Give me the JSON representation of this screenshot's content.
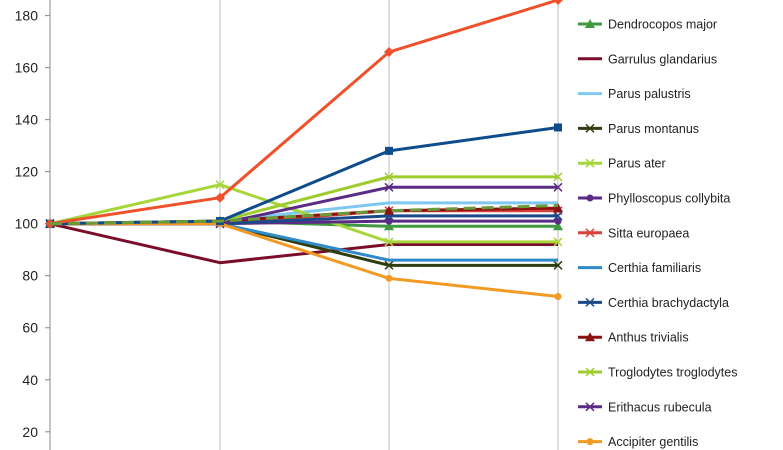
{
  "chart_data": {
    "type": "line",
    "title": "",
    "xlabel": "",
    "ylabel": "",
    "x": [
      1,
      2,
      3,
      4
    ],
    "ylim": [
      13,
      186
    ],
    "yticks": [
      20,
      40,
      60,
      80,
      100,
      120,
      140,
      160,
      180
    ],
    "grid": {
      "horizontal": false,
      "vertical": true
    },
    "legend_position": "right",
    "series": [
      {
        "name": "Dendrocopos major",
        "values": [
          100,
          101,
          99,
          99
        ],
        "color": "#3f9a3f",
        "marker": "triangle"
      },
      {
        "name": "Garrulus glandarius",
        "values": [
          100,
          85,
          92,
          92
        ],
        "color": "#7b0d2b",
        "marker": "none"
      },
      {
        "name": "Parus palustris",
        "values": [
          100,
          101,
          108,
          108
        ],
        "color": "#7fc8ef",
        "marker": "none"
      },
      {
        "name": "Parus montanus",
        "values": [
          100,
          100,
          84,
          84
        ],
        "color": "#2f3d0f",
        "marker": "x"
      },
      {
        "name": "Parus ater",
        "values": [
          100,
          115,
          93,
          93
        ],
        "color": "#a6d63a",
        "marker": "x"
      },
      {
        "name": "Phylloscopus collybita",
        "values": [
          100,
          100,
          101,
          101
        ],
        "color": "#5b2a86",
        "marker": "circle"
      },
      {
        "name": "Sitta europaea",
        "values": [
          100,
          100,
          105,
          105
        ],
        "color": "#d9423a",
        "marker": "x"
      },
      {
        "name": "Certhia familiaris",
        "values": [
          100,
          100,
          86,
          86
        ],
        "color": "#2e8ac9",
        "marker": "none"
      },
      {
        "name": "Certhia brachydactyla",
        "values": [
          100,
          100,
          103,
          103
        ],
        "color": "#1a4a8a",
        "marker": "x"
      },
      {
        "name": "Anthus trivialis",
        "values": [
          100,
          101,
          105,
          106
        ],
        "color": "#8c1212",
        "marker": "triangle"
      },
      {
        "name": "Troglodytes troglodytes",
        "values": [
          100,
          101,
          118,
          118
        ],
        "color": "#9fcc2e",
        "marker": "x"
      },
      {
        "name": "Erithacus rubecula",
        "values": [
          100,
          100,
          114,
          114
        ],
        "color": "#5b2c83",
        "marker": "x"
      },
      {
        "name": "Accipiter gentilis",
        "values": [
          100,
          100,
          79,
          72
        ],
        "color": "#f39a25",
        "marker": "circle"
      },
      {
        "name": "",
        "values": [
          100,
          101,
          128,
          137
        ],
        "color": "#0f4c8c",
        "marker": "square"
      },
      {
        "name": "",
        "values": [
          100,
          110,
          166,
          186
        ],
        "color": "#f0502a",
        "marker": "diamond"
      },
      {
        "name": "",
        "values": [
          100,
          101,
          105,
          107
        ],
        "color": "#6c9a3a",
        "marker": "none",
        "dashed": true
      }
    ]
  }
}
